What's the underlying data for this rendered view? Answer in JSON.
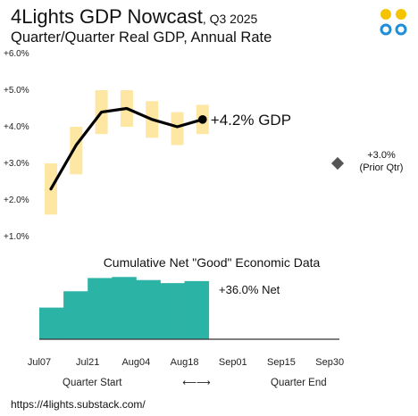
{
  "header": {
    "title": "4Lights GDP Nowcast",
    "quarter": ", Q3 2025",
    "subtitle": "Quarter/Quarter Real GDP, Annual Rate"
  },
  "logo": {
    "icon": "four-dots-logo-icon",
    "colors": [
      "#f5c400",
      "#1e8ed8"
    ]
  },
  "colors": {
    "range_band": "#fde7a3",
    "line": "#000000",
    "bars": "#2bb3a6",
    "prior_marker": "#555555",
    "axis": "#333333"
  },
  "chart_data": [
    {
      "type": "line",
      "title": "",
      "ylabel": "",
      "ylim": [
        1.0,
        6.0
      ],
      "yticks": [
        "+6.0%",
        "+5.0%",
        "+4.0%",
        "+3.0%",
        "+2.0%",
        "+1.0%"
      ],
      "ytick_values": [
        6.0,
        5.0,
        4.0,
        3.0,
        2.0,
        1.0
      ],
      "x": [
        0,
        1,
        2,
        3,
        4,
        5,
        6
      ],
      "series": [
        {
          "values": [
            2.3,
            3.5,
            4.4,
            4.5,
            4.2,
            4.0,
            4.2
          ],
          "range_low": [
            1.6,
            2.7,
            3.8,
            4.0,
            3.7,
            3.5,
            3.8
          ],
          "range_high": [
            3.0,
            4.0,
            5.0,
            5.0,
            4.7,
            4.4,
            4.6
          ]
        }
      ],
      "annotation": {
        "label": "+4.2% GDP",
        "value": 4.2
      },
      "prior": {
        "label_1": "+3.0%",
        "label_2": "(Prior Qtr)",
        "value": 3.0
      }
    },
    {
      "type": "area",
      "title": "Cumulative Net \"Good\" Economic Data",
      "x": [
        0,
        1,
        2,
        3,
        4,
        5,
        6
      ],
      "values": [
        31,
        47,
        60,
        61,
        58,
        55,
        57
      ],
      "ylim": [
        0,
        70
      ],
      "annotation": "+36.0% Net",
      "xticks": [
        "Jul07",
        "Jul21",
        "Aug04",
        "Aug18",
        "Sep01",
        "Sep15",
        "Sep30"
      ],
      "xtick_positions": [
        0,
        2,
        4,
        6,
        8,
        10,
        12
      ],
      "xlim": [
        0,
        12.4
      ]
    }
  ],
  "footer": {
    "quarter_start": "Quarter Start",
    "arrow": "⟵⟶",
    "quarter_end": "Quarter End",
    "url": "https://4lights.substack.com/"
  }
}
